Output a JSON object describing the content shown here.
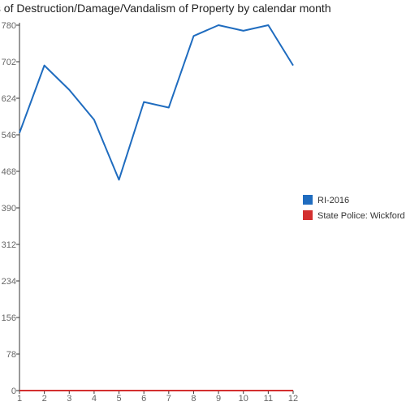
{
  "chart_data": {
    "type": "line",
    "title": "ts of Destruction/Damage/Vandalism of Property by calendar month",
    "xlabel": "",
    "ylabel": "",
    "categories": [
      "1",
      "2",
      "3",
      "4",
      "5",
      "6",
      "7",
      "8",
      "9",
      "10",
      "11",
      "12"
    ],
    "y_ticks": [
      0,
      78,
      156,
      234,
      312,
      390,
      468,
      546,
      624,
      702,
      780
    ],
    "ylim": [
      0,
      780
    ],
    "grid": false,
    "legend_position": "right",
    "series": [
      {
        "name": "RI-2016",
        "color": "#1f6cbf",
        "values": [
          550,
          694,
          642,
          578,
          450,
          616,
          604,
          757,
          780,
          768,
          780,
          694
        ]
      },
      {
        "name": "State Police: Wickford",
        "color": "#d32f2f",
        "values": [
          0,
          0,
          0,
          0,
          0,
          0,
          0,
          0,
          0,
          0,
          0,
          0
        ]
      }
    ]
  }
}
